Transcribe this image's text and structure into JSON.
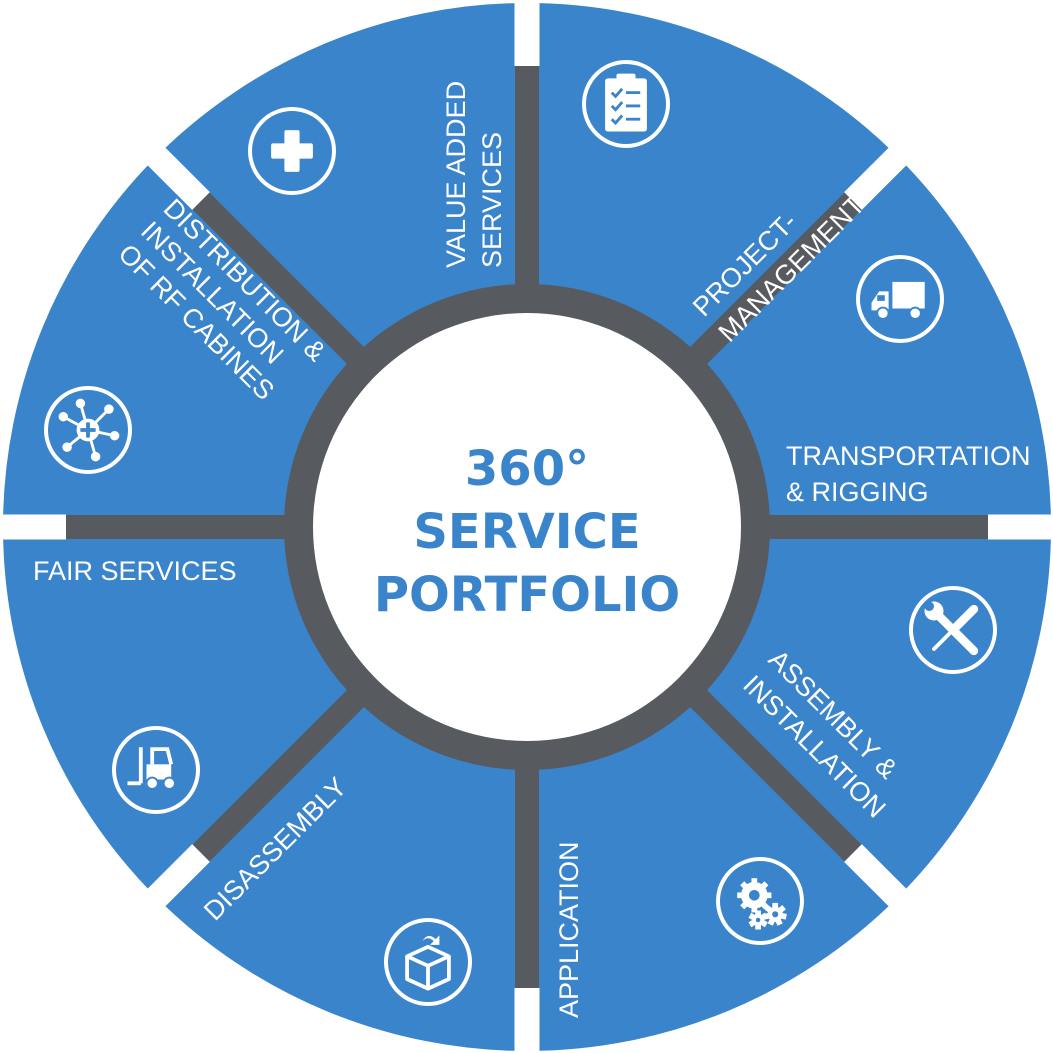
{
  "colors": {
    "segment": "#3a84cb",
    "hub_ring": "#575a5f",
    "hub_fill": "#ffffff",
    "center_text": "#3a84cb",
    "icon": "#ffffff",
    "gap": "#ffffff"
  },
  "center": {
    "line1": "360°",
    "line2": "SERVICE",
    "line3": "PORTFOLIO"
  },
  "segments": [
    {
      "id": "project-management",
      "icon": "clipboard-checklist-icon",
      "label": [
        "PROJECT-",
        "MANAGEMENT"
      ]
    },
    {
      "id": "transportation-rigging",
      "icon": "truck-icon",
      "label": [
        "TRANSPORTATION",
        "& RIGGING"
      ]
    },
    {
      "id": "assembly-installation",
      "icon": "wrench-screwdriver-icon",
      "label": [
        "ASSEMBLY &",
        "INSTALLATION"
      ]
    },
    {
      "id": "application",
      "icon": "gears-icon",
      "label": [
        "APPLICATION"
      ]
    },
    {
      "id": "disassembly",
      "icon": "box-icon",
      "label": [
        "DISASSEMBLY"
      ]
    },
    {
      "id": "fair-services",
      "icon": "forklift-icon",
      "label": [
        "FAIR SERVICES"
      ]
    },
    {
      "id": "distribution-installation",
      "icon": "network-icon",
      "label": [
        "DISTRIBUTION &",
        "INSTALLATION",
        "OF RF CABINES"
      ]
    },
    {
      "id": "value-added-services",
      "icon": "plus-icon",
      "label": [
        "VALUE ADDED",
        "SERVICES"
      ]
    }
  ]
}
